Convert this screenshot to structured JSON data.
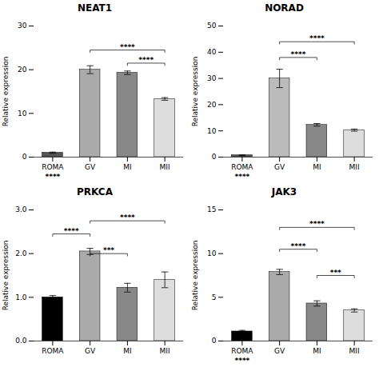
{
  "chart_data": [
    {
      "type": "bar",
      "title": "NEAT1",
      "ylabel": "Relative expression",
      "categories": [
        "ROMA",
        "GV",
        "MI",
        "MII"
      ],
      "values": [
        1.0,
        20.0,
        19.3,
        13.3
      ],
      "errors": [
        0.15,
        0.9,
        0.4,
        0.3
      ],
      "colors": [
        "#555555",
        "#aaaaaa",
        "#888888",
        "#dddddd"
      ],
      "ylim": [
        0,
        30
      ],
      "yticks": [
        0,
        10,
        20,
        30
      ],
      "annotations": [
        {
          "text": "****",
          "x": "ROMA"
        },
        {
          "text": "****",
          "from": "GV",
          "to": "MII",
          "y": 24.5
        },
        {
          "text": "****",
          "from": "MI",
          "to": "MII",
          "y": 21.5
        }
      ]
    },
    {
      "type": "bar",
      "title": "NORAD",
      "ylabel": "Relative expression",
      "categories": [
        "ROMA",
        "GV",
        "MI",
        "MII"
      ],
      "values": [
        0.7,
        30.0,
        12.3,
        10.3
      ],
      "errors": [
        0.15,
        3.5,
        0.5,
        0.4
      ],
      "colors": [
        "#555555",
        "#bbbbbb",
        "#888888",
        "#dddddd"
      ],
      "ylim": [
        0,
        50
      ],
      "yticks": [
        0,
        10,
        20,
        30,
        40,
        50
      ],
      "annotations": [
        {
          "text": "****",
          "x": "ROMA"
        },
        {
          "text": "****",
          "from": "GV",
          "to": "MII",
          "y": 44
        },
        {
          "text": "****",
          "from": "GV",
          "to": "MI",
          "y": 38
        }
      ]
    },
    {
      "type": "bar",
      "title": "PRKCA",
      "ylabel": "Relative expression",
      "categories": [
        "ROMA",
        "GV",
        "MI",
        "MII"
      ],
      "values": [
        1.0,
        2.05,
        1.22,
        1.4
      ],
      "errors": [
        0.04,
        0.07,
        0.1,
        0.18
      ],
      "colors": [
        "#000000",
        "#aaaaaa",
        "#888888",
        "#dddddd"
      ],
      "ylim": [
        0,
        3
      ],
      "yticks": [
        0,
        1,
        2,
        3
      ],
      "annotations": [
        {
          "text": "****",
          "from": "ROMA",
          "to": "GV",
          "y": 2.45
        },
        {
          "text": "***",
          "from": "GV",
          "to": "MI",
          "y": 2.0
        },
        {
          "text": "****",
          "from": "GV",
          "to": "MII",
          "y": 2.75
        }
      ]
    },
    {
      "type": "bar",
      "title": "JAK3",
      "ylabel": "Relative expression",
      "categories": [
        "ROMA",
        "GV",
        "MI",
        "MII"
      ],
      "values": [
        1.1,
        7.9,
        4.3,
        3.5
      ],
      "errors": [
        0.12,
        0.3,
        0.3,
        0.18
      ],
      "colors": [
        "#000000",
        "#aaaaaa",
        "#888888",
        "#dddddd"
      ],
      "ylim": [
        0,
        15
      ],
      "yticks": [
        0,
        5,
        10,
        15
      ],
      "annotations": [
        {
          "text": "****",
          "x": "ROMA"
        },
        {
          "text": "****",
          "from": "GV",
          "to": "MII",
          "y": 13.0
        },
        {
          "text": "****",
          "from": "GV",
          "to": "MI",
          "y": 10.5
        },
        {
          "text": "***",
          "from": "MI",
          "to": "MII",
          "y": 7.5
        }
      ]
    }
  ]
}
